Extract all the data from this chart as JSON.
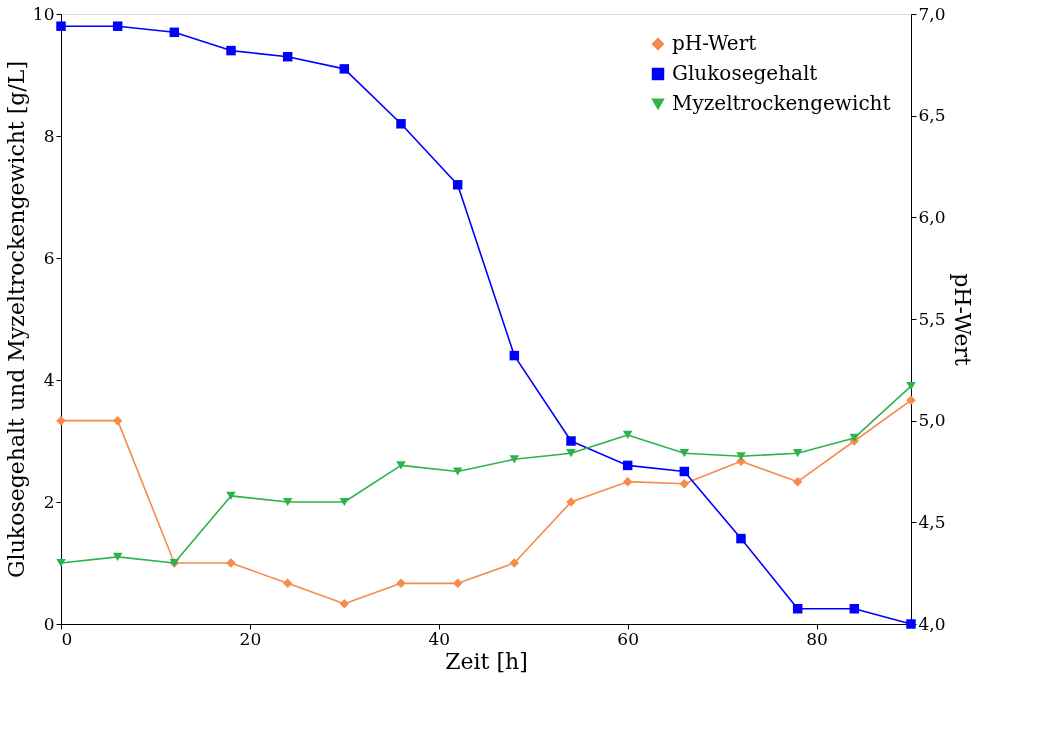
{
  "chart_data": {
    "type": "line",
    "xlabel": "Zeit [h]",
    "ylabel": "Glukosegehalt und Myzeltrockengewicht [g/L]",
    "y2label": "pH-Wert",
    "x": [
      0,
      6,
      12,
      18,
      24,
      30,
      36,
      42,
      48,
      54,
      60,
      66,
      72,
      78,
      84,
      90
    ],
    "series": [
      {
        "name": "pH-Wert",
        "color": "#f58b4c",
        "marker": "diamond",
        "axis": "y2",
        "values": [
          5.0,
          5.0,
          4.3,
          4.3,
          4.2,
          4.1,
          4.2,
          4.2,
          4.3,
          4.6,
          4.7,
          4.69,
          4.8,
          4.7,
          4.9,
          5.1
        ]
      },
      {
        "name": "Glukosegehalt",
        "color": "#0000ff",
        "marker": "square",
        "values": [
          9.8,
          9.8,
          9.7,
          9.4,
          9.3,
          9.1,
          8.2,
          7.2,
          4.4,
          3.0,
          2.6,
          2.5,
          1.4,
          0.25,
          0.25,
          0.0
        ]
      },
      {
        "name": "Myzeltrockengewicht",
        "color": "#2db34a",
        "marker": "triangle-down",
        "values": [
          1.0,
          1.1,
          1.0,
          2.1,
          2.0,
          2.0,
          2.6,
          2.5,
          2.7,
          2.8,
          3.1,
          2.8,
          2.75,
          2.8,
          3.05,
          3.9
        ]
      }
    ],
    "xlim": [
      0,
      90
    ],
    "xticks": [
      0,
      20,
      40,
      60,
      80
    ],
    "ylim": [
      0,
      10
    ],
    "yticks": [
      0,
      2,
      4,
      6,
      8,
      10
    ],
    "y2lim": [
      4.0,
      7.0
    ],
    "y2ticks": [
      {
        "value": 4.0,
        "label": "4,0"
      },
      {
        "value": 4.5,
        "label": "4,5"
      },
      {
        "value": 5.0,
        "label": "5,0"
      },
      {
        "value": 5.5,
        "label": "5,5"
      },
      {
        "value": 6.0,
        "label": "6,0"
      },
      {
        "value": 6.5,
        "label": "6,5"
      },
      {
        "value": 7.0,
        "label": "7,0"
      }
    ],
    "grid": false,
    "legend": "top right",
    "line_style": "solid"
  }
}
